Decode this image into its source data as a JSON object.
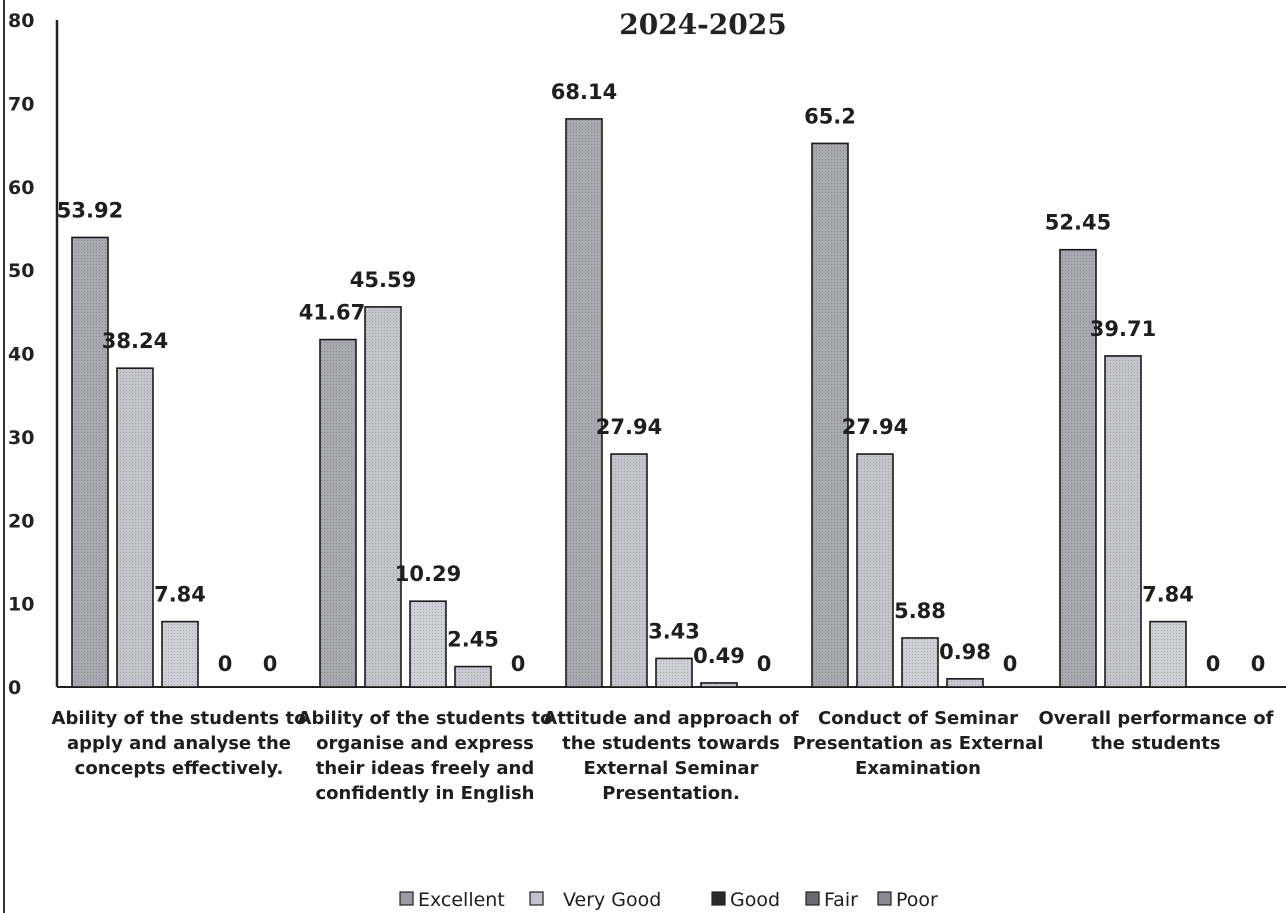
{
  "chart_data": {
    "type": "bar",
    "title": "2024-2025",
    "xlabel": "",
    "ylabel": "",
    "ylim": [
      0,
      80
    ],
    "yticks": [
      0,
      10,
      20,
      30,
      40,
      50,
      60,
      70,
      80
    ],
    "grid": false,
    "legend_position": "bottom",
    "categories": [
      [
        "Ability of the students to",
        "apply and analyse the",
        "concepts effectively."
      ],
      [
        "Ability of the students to",
        "organise and express",
        "their ideas freely and",
        "confidently in English"
      ],
      [
        "Attitude and approach of",
        "the students towards",
        "External Seminar",
        "Presentation."
      ],
      [
        "Conduct of Seminar",
        "Presentation as External",
        "Examination"
      ],
      [
        "Overall performance of",
        "the students"
      ]
    ],
    "series": [
      {
        "name": "Excellent",
        "color": "#a8a8b0",
        "values": [
          53.92,
          41.67,
          68.14,
          65.2,
          52.45
        ]
      },
      {
        "name": "Very   Good",
        "color": "#c4c4cc",
        "values": [
          38.24,
          45.59,
          27.94,
          27.94,
          39.71
        ]
      },
      {
        "name": "Good",
        "color": "#cfcfd8",
        "values": [
          7.84,
          10.29,
          3.43,
          5.88,
          7.84
        ]
      },
      {
        "name": "Fair",
        "color": "#c9c9d2",
        "values": [
          0,
          2.45,
          0.49,
          0.98,
          0
        ]
      },
      {
        "name": "Poor",
        "color": "#b8b8c0",
        "values": [
          0,
          0,
          0,
          0,
          0
        ]
      }
    ],
    "data_labels": [
      [
        "53.92",
        "41.67",
        "68.14",
        "65.2",
        "52.45"
      ],
      [
        "38.24",
        "45.59",
        "27.94",
        "27.94",
        "39.71"
      ],
      [
        "7.84",
        "10.29",
        "3.43",
        "5.88",
        "7.84"
      ],
      [
        "0",
        "2.45",
        "0.49",
        "0.98",
        "0"
      ],
      [
        "0",
        "0",
        "0",
        "0",
        "0"
      ]
    ],
    "legend_icon_colors": [
      "#9a9aa2",
      "#c4c4cc",
      "#2a2a2a",
      "#6a6a70",
      "#8a8a90"
    ]
  }
}
